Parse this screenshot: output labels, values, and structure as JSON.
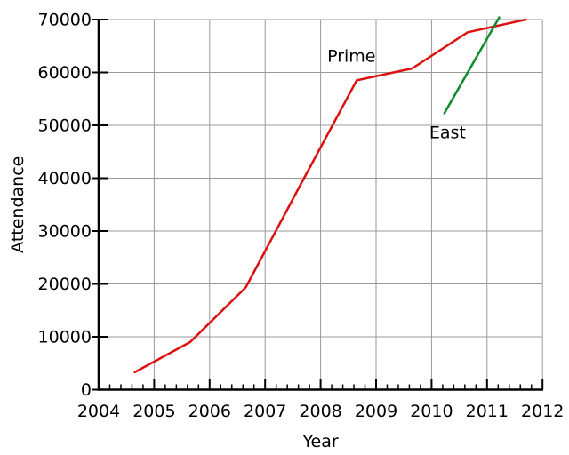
{
  "chart_data": {
    "type": "line",
    "title": "",
    "xlabel": "Year",
    "ylabel": "Attendance",
    "xlim": [
      2004,
      2012
    ],
    "ylim": [
      0,
      70000
    ],
    "x_major_tick_step": 1,
    "x_minor_tick_step": 0.2,
    "y_major_tick_step": 10000,
    "grid": "on",
    "legend_position": "inline-annotations",
    "series": [
      {
        "name": "Prime",
        "color": "#dd1111",
        "points": [
          [
            2004.65,
            3300
          ],
          [
            2005.65,
            9000
          ],
          [
            2006.65,
            19323
          ],
          [
            2007.65,
            39000
          ],
          [
            2008.65,
            58500
          ],
          [
            2009.65,
            60750
          ],
          [
            2010.65,
            67600
          ],
          [
            2011.7,
            70000
          ]
        ],
        "label": {
          "text": "Prime",
          "x": 2008.12,
          "y": 62000
        }
      },
      {
        "name": "East",
        "color": "#108c2c",
        "points": [
          [
            2010.23,
            52290
          ],
          [
            2011.22,
            70400
          ]
        ],
        "label": {
          "text": "East",
          "x": 2009.96,
          "y": 47600
        }
      }
    ],
    "colors": {
      "grid": "#999999",
      "axis": "#000000",
      "text": "#000000",
      "background": "#ffffff"
    }
  }
}
